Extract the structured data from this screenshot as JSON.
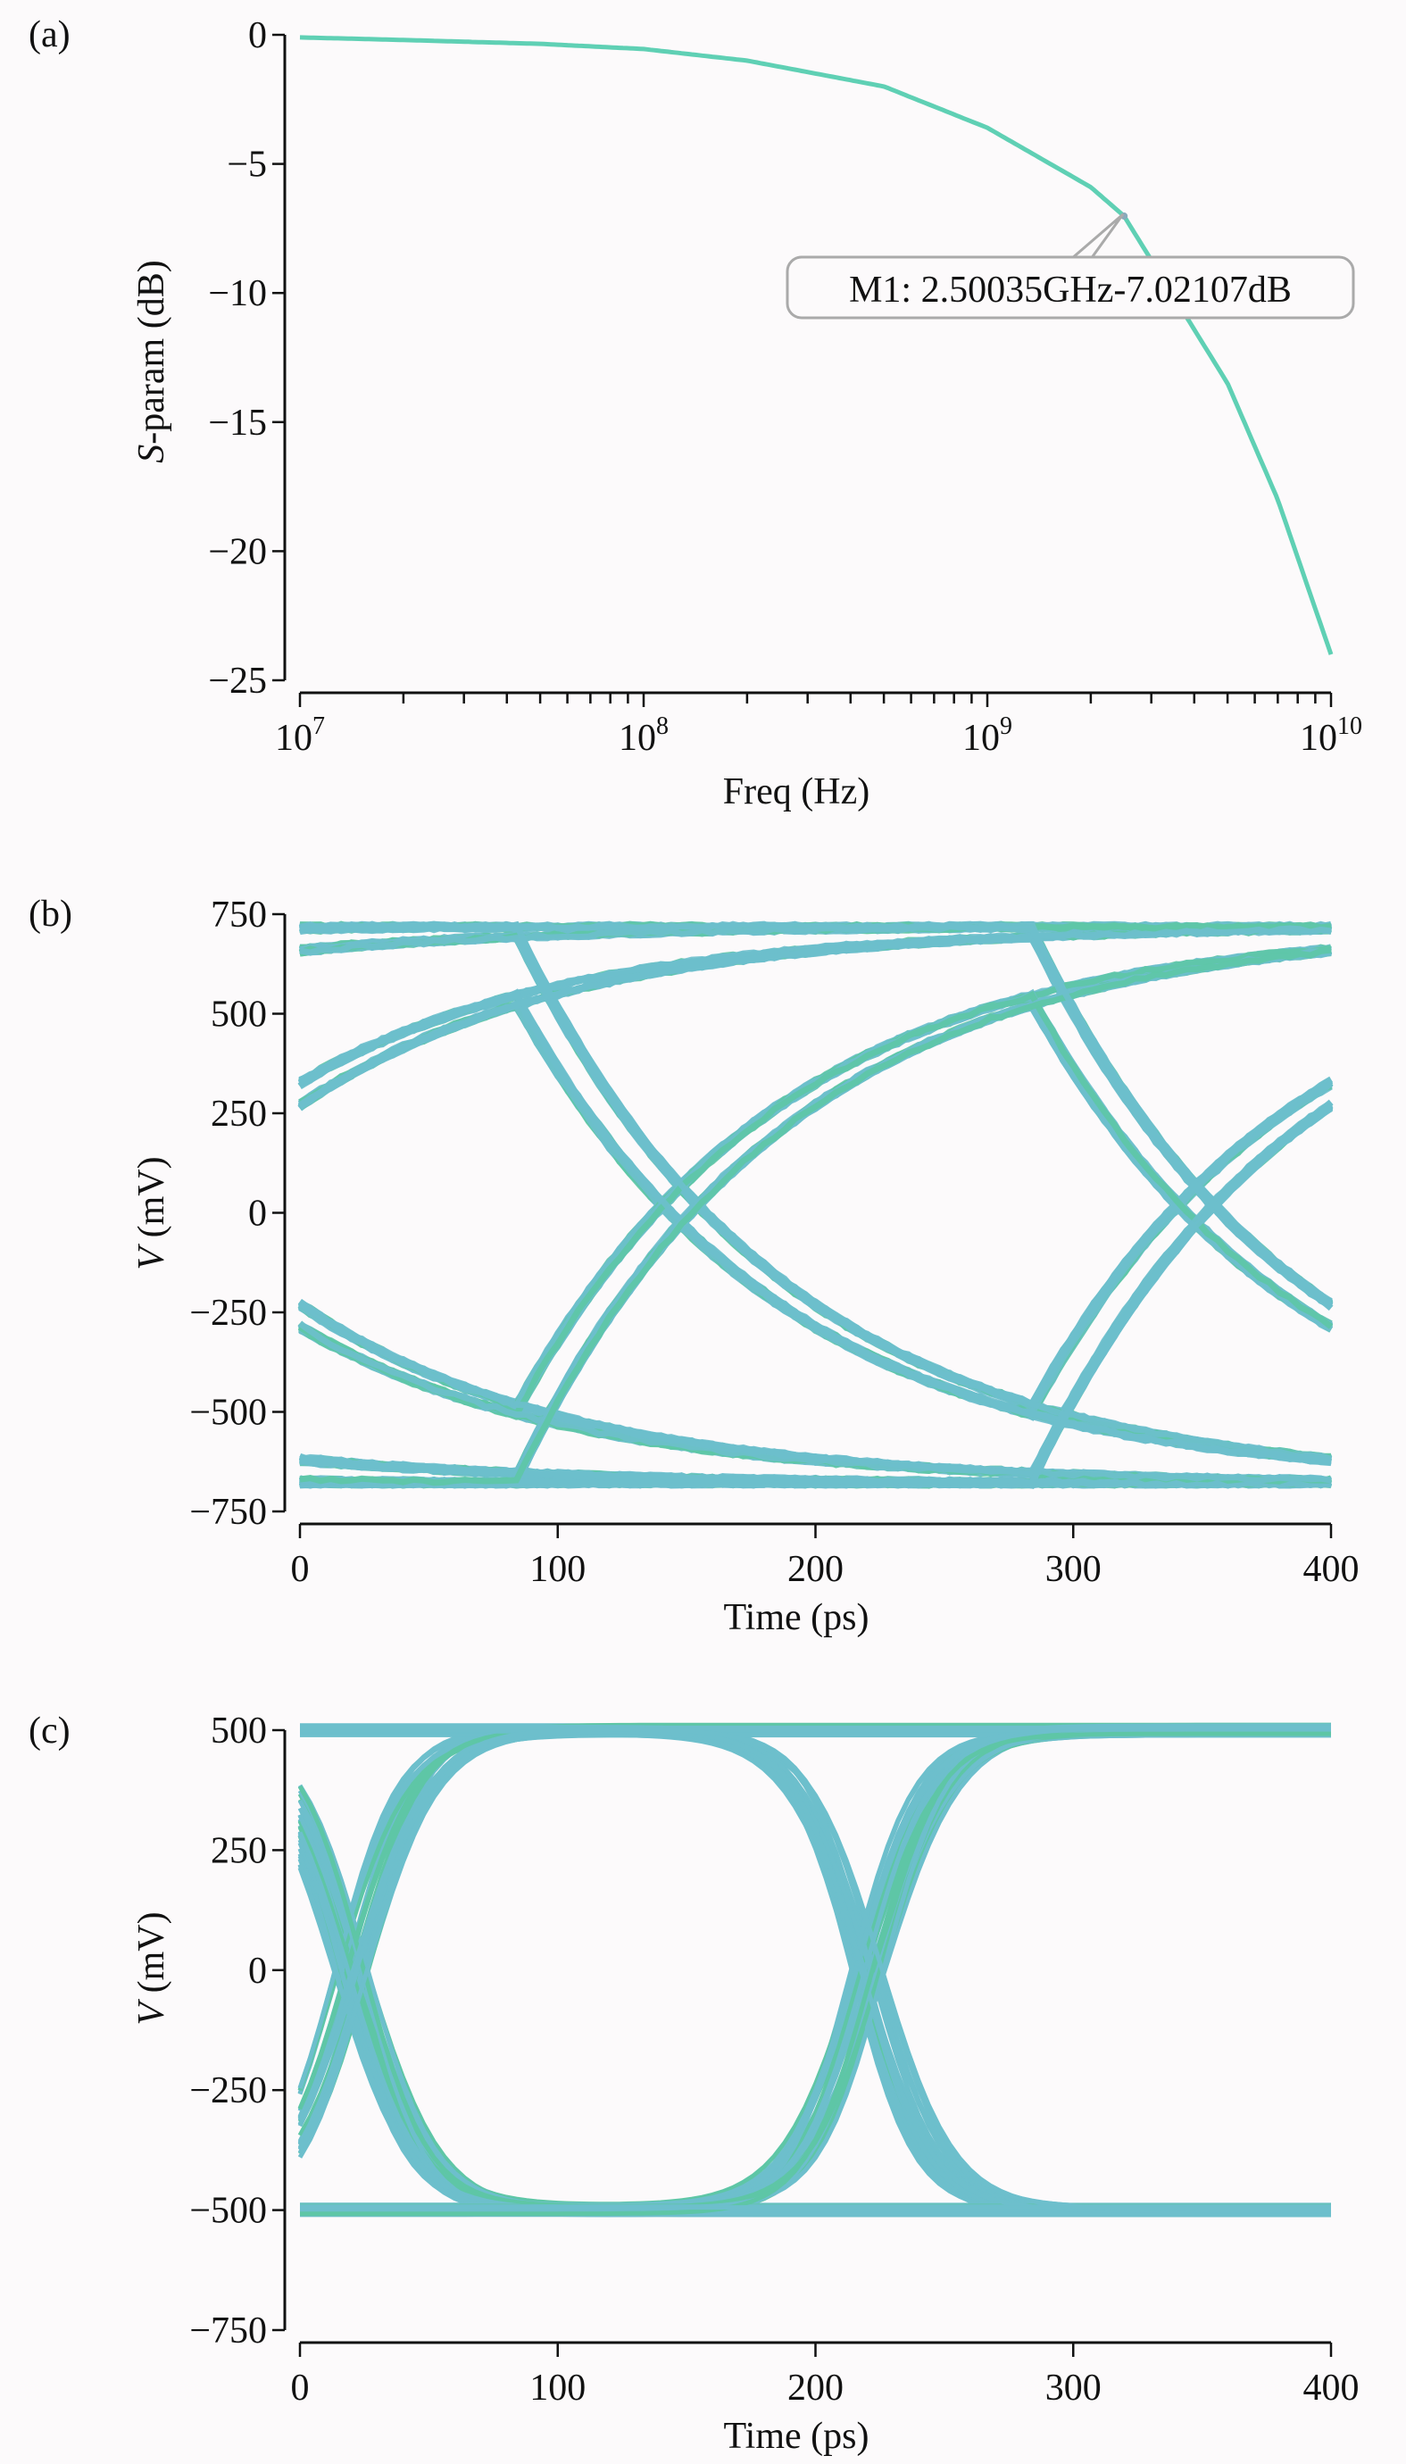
{
  "chart_data": [
    {
      "panel_label": "(a)",
      "type": "line",
      "xlabel": "Freq (Hz)",
      "ylabel": "S-param (dB)",
      "x_scale": "log",
      "xlim": [
        10000000.0,
        10000000000.0
      ],
      "ylim": [
        -25,
        0
      ],
      "x_ticks": [
        {
          "base": "10",
          "exp": "7",
          "value": 10000000.0
        },
        {
          "base": "10",
          "exp": "8",
          "value": 100000000.0
        },
        {
          "base": "10",
          "exp": "9",
          "value": 1000000000.0
        },
        {
          "base": "10",
          "exp": "10",
          "value": 10000000000.0
        }
      ],
      "y_ticks": [
        {
          "label": "0",
          "value": 0
        },
        {
          "label": "−5",
          "value": -5
        },
        {
          "label": "−10",
          "value": -10
        },
        {
          "label": "−15",
          "value": -15
        },
        {
          "label": "−20",
          "value": -20
        },
        {
          "label": "−25",
          "value": -25
        }
      ],
      "grid": false,
      "color": "#5fd0b4",
      "x": [
        10000000.0,
        20000000.0,
        50000000.0,
        100000000.0,
        200000000.0,
        500000000.0,
        1000000000.0,
        2000000000.0,
        2500000000.0,
        5000000000.0,
        7000000000.0,
        10000000000.0
      ],
      "y": [
        -0.1,
        -0.2,
        -0.35,
        -0.55,
        -1.0,
        -2.0,
        -3.6,
        -5.9,
        -7.02,
        -13.5,
        -18.0,
        -24.0
      ],
      "marker": {
        "label": "M1: 2.50035GHz-7.02107dB",
        "x": 2500350000.0,
        "y": -7.02107
      }
    },
    {
      "panel_label": "(b)",
      "type": "line",
      "subtype": "eye diagram",
      "xlabel": "Time (ps)",
      "ylabel": "V (mV)",
      "xlim": [
        0,
        400
      ],
      "ylim": [
        -750,
        750
      ],
      "x_ticks": [
        {
          "label": "0",
          "value": 0
        },
        {
          "label": "100",
          "value": 100
        },
        {
          "label": "200",
          "value": 200
        },
        {
          "label": "300",
          "value": 300
        },
        {
          "label": "400",
          "value": 400
        }
      ],
      "y_ticks": [
        {
          "label": "750",
          "value": 750
        },
        {
          "label": "500",
          "value": 500
        },
        {
          "label": "250",
          "value": 250
        },
        {
          "label": "0",
          "value": 0
        },
        {
          "label": "−250",
          "value": -250
        },
        {
          "label": "−500",
          "value": -500
        },
        {
          "label": "−750",
          "value": -750
        }
      ],
      "grid": false,
      "color": "#6dbfcc",
      "unit_interval_ps": 200,
      "crossing_times_ps": [
        150,
        350
      ],
      "signal_range_mv": [
        -680,
        720
      ]
    },
    {
      "panel_label": "(c)",
      "type": "line",
      "subtype": "eye diagram",
      "xlabel": "Time (ps)",
      "ylabel": "V (mV)",
      "xlim": [
        0,
        400
      ],
      "ylim": [
        -750,
        500
      ],
      "x_ticks": [
        {
          "label": "0",
          "value": 0
        },
        {
          "label": "100",
          "value": 100
        },
        {
          "label": "200",
          "value": 200
        },
        {
          "label": "300",
          "value": 300
        },
        {
          "label": "400",
          "value": 400
        }
      ],
      "y_ticks": [
        {
          "label": "500",
          "value": 500
        },
        {
          "label": "250",
          "value": 250
        },
        {
          "label": "0",
          "value": 0
        },
        {
          "label": "−250",
          "value": -250
        },
        {
          "label": "−500",
          "value": -500
        },
        {
          "label": "−750",
          "value": -750
        }
      ],
      "grid": false,
      "color": "#6dbfcc",
      "unit_interval_ps": 200,
      "crossing_times_ps": [
        20,
        220
      ],
      "levels_mv": [
        -500,
        500
      ]
    }
  ]
}
